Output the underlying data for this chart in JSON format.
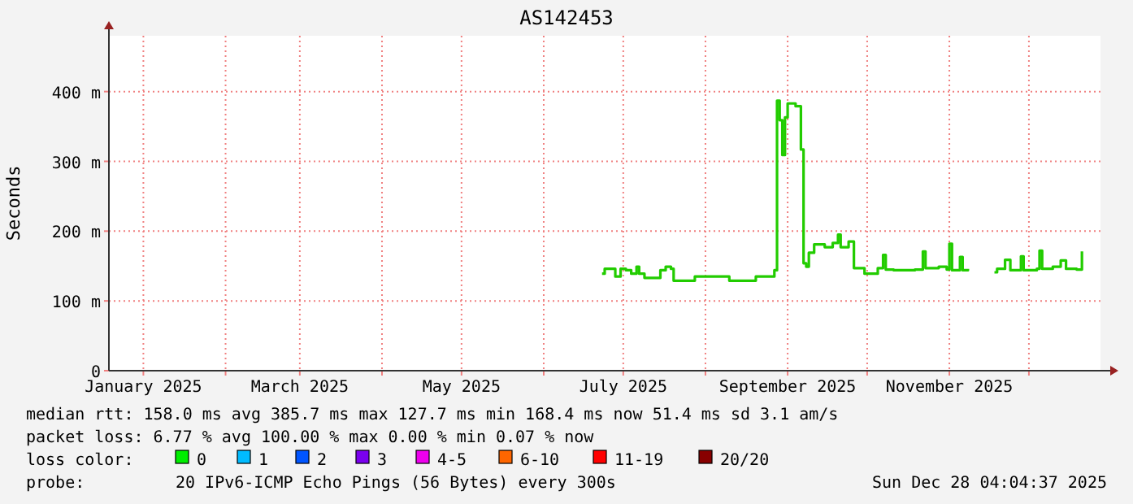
{
  "chart_data": {
    "type": "line",
    "title": "AS142453",
    "ylabel": "Seconds",
    "xlim": [
      "2024-12-19",
      "2025-12-28"
    ],
    "xticks": [
      {
        "value": "2025-01-01",
        "label": "January 2025"
      },
      {
        "value": "2025-02-01",
        "label": null
      },
      {
        "value": "2025-03-01",
        "label": "March 2025"
      },
      {
        "value": "2025-04-01",
        "label": null
      },
      {
        "value": "2025-05-01",
        "label": "May 2025"
      },
      {
        "value": "2025-06-01",
        "label": null
      },
      {
        "value": "2025-07-01",
        "label": "July 2025"
      },
      {
        "value": "2025-08-01",
        "label": null
      },
      {
        "value": "2025-09-01",
        "label": "September 2025"
      },
      {
        "value": "2025-10-01",
        "label": null
      },
      {
        "value": "2025-11-01",
        "label": "November 2025"
      },
      {
        "value": "2025-12-01",
        "label": null
      }
    ],
    "ylim": [
      0,
      480
    ],
    "yticks": [
      0,
      {
        "value": 100,
        "label": "100 m"
      },
      {
        "value": 200,
        "label": "200 m"
      },
      {
        "value": 300,
        "label": "300 m"
      },
      {
        "value": 400,
        "label": "400 m"
      }
    ],
    "grid": true,
    "marker": "none",
    "line_style": "solid",
    "series": [
      {
        "color": "#22cc00",
        "x": [
          "2025-06-23",
          "2025-06-24",
          "2025-06-27",
          "2025-06-28",
          "2025-06-30",
          "2025-07-02",
          "2025-07-04",
          "2025-07-06",
          "2025-07-07",
          "2025-07-09",
          "2025-07-12",
          "2025-07-15",
          "2025-07-17",
          "2025-07-19",
          "2025-07-20",
          "2025-07-25",
          "2025-07-28",
          "2025-08-09",
          "2025-08-10",
          "2025-08-18",
          "2025-08-20",
          "2025-08-26",
          "2025-08-27",
          "2025-08-28",
          "2025-08-29",
          "2025-08-30",
          "2025-08-31",
          "2025-09-01",
          "2025-09-04",
          "2025-09-06",
          "2025-09-07",
          "2025-09-08",
          "2025-09-09",
          "2025-09-11",
          "2025-09-15",
          "2025-09-18",
          "2025-09-20",
          "2025-09-21",
          "2025-09-24",
          "2025-09-25",
          "2025-09-26",
          "2025-09-30",
          "2025-10-05",
          "2025-10-07",
          "2025-10-08",
          "2025-10-11",
          "2025-10-19",
          "2025-10-22",
          "2025-10-23",
          "2025-10-28",
          "2025-10-31",
          "2025-11-01",
          "2025-11-02",
          "2025-11-05",
          "2025-11-06",
          "2025-11-08",
          "2025-11-13",
          "2025-11-18",
          "2025-11-19",
          "2025-11-22",
          "2025-11-24",
          "2025-11-28",
          "2025-11-29",
          "2025-12-04",
          "2025-12-05",
          "2025-12-06",
          "2025-12-10",
          "2025-12-13",
          "2025-12-15",
          "2025-12-19",
          "2025-12-21"
        ],
        "values": [
          139,
          146,
          146,
          135,
          146,
          144,
          139,
          149,
          139,
          133,
          133,
          144,
          149,
          146,
          129,
          129,
          135,
          135,
          129,
          129,
          135,
          135,
          144,
          387,
          359,
          309,
          363,
          383,
          379,
          317,
          154,
          149,
          169,
          181,
          177,
          183,
          195,
          177,
          185,
          185,
          147,
          139,
          147,
          166,
          145,
          144,
          145,
          171,
          147,
          149,
          145,
          182,
          144,
          163,
          144,
          146,
          null,
          141,
          146,
          159,
          144,
          164,
          144,
          146,
          172,
          146,
          149,
          158,
          146,
          145,
          171
        ]
      }
    ],
    "annotations": [
      "median rtt:  158.0 ms avg  385.7 ms max  127.7 ms min  168.4 ms now  51.4 ms sd  3.1   am/s",
      "packet loss: 6.77 % avg  100.00 % max  0.00 % min  0.07 % now",
      "loss color:",
      "0",
      "1",
      "2",
      "3",
      "4-5",
      "6-10",
      "11-19",
      "20/20",
      "probe:",
      "20 IPv6-ICMP Echo Pings (56 Bytes) every 300s",
      "Sun Dec 28 04:04:37 2025"
    ]
  }
}
